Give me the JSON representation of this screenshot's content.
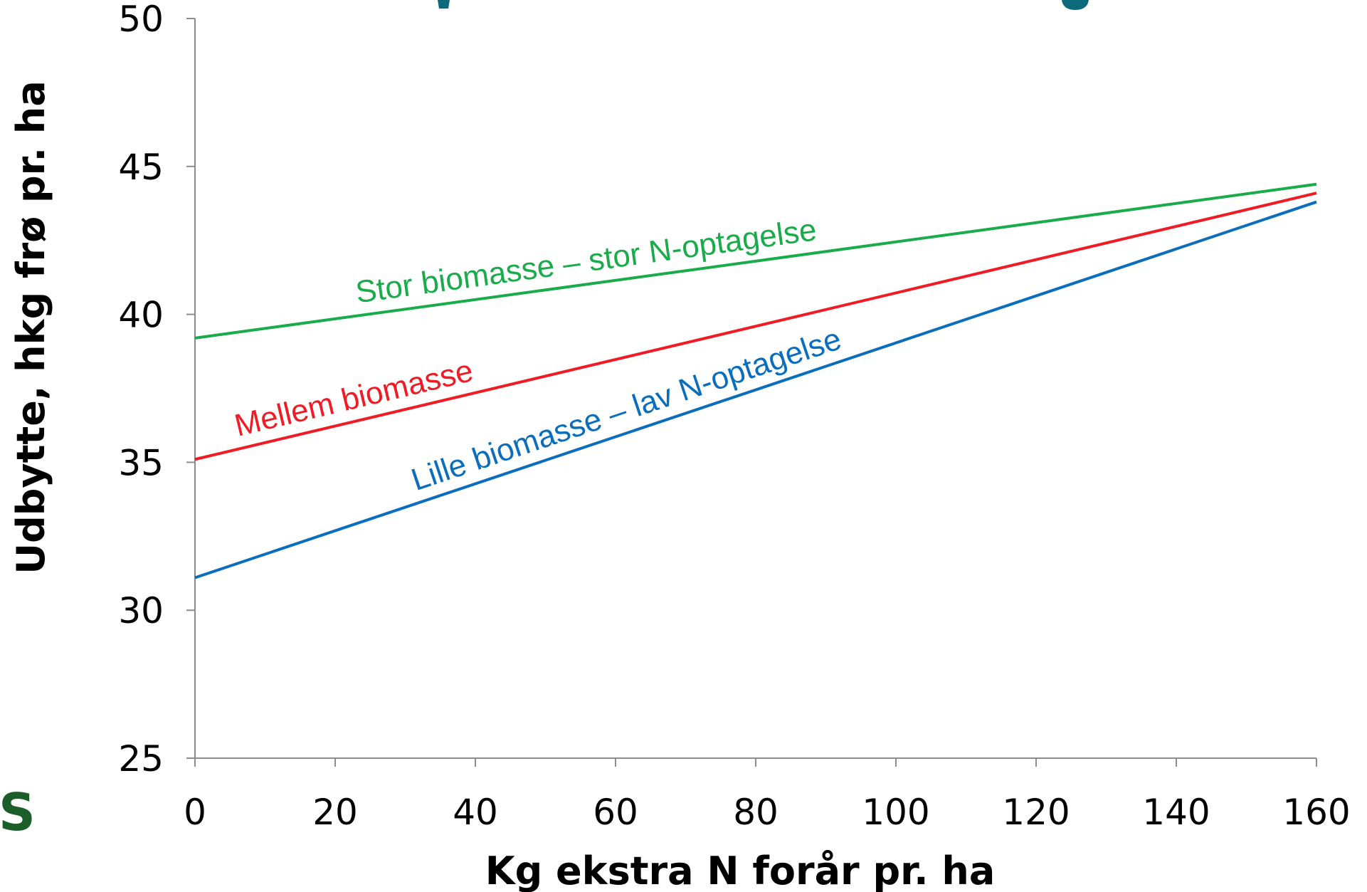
{
  "chart_data": {
    "type": "line",
    "title": "",
    "xlabel": "Kg ekstra N forår pr. ha",
    "ylabel": "Udbytte, hkg frø pr. ha",
    "xlim": [
      0,
      160
    ],
    "ylim": [
      25,
      50
    ],
    "x_ticks": [
      0,
      20,
      40,
      60,
      80,
      100,
      120,
      140,
      160
    ],
    "y_ticks": [
      25,
      30,
      35,
      40,
      45,
      50
    ],
    "grid": false,
    "series": [
      {
        "name": "Stor biomasse – stor N-optagelse",
        "color": "#1aab4b",
        "x": [
          0,
          160
        ],
        "y": [
          39.2,
          44.4
        ]
      },
      {
        "name": "Mellem biomasse",
        "color": "#ee1c25",
        "x": [
          0,
          160
        ],
        "y": [
          35.1,
          44.1
        ]
      },
      {
        "name": "Lille biomasse – lav N-optagelse",
        "color": "#0a6ebd",
        "x": [
          0,
          160
        ],
        "y": [
          31.1,
          43.8
        ]
      }
    ]
  },
  "logo_fragment": {
    "text": "S",
    "color": "#1b5e2a"
  },
  "colors": {
    "axis": "#8c8c8c",
    "title_partial": "#0b6b7a"
  }
}
